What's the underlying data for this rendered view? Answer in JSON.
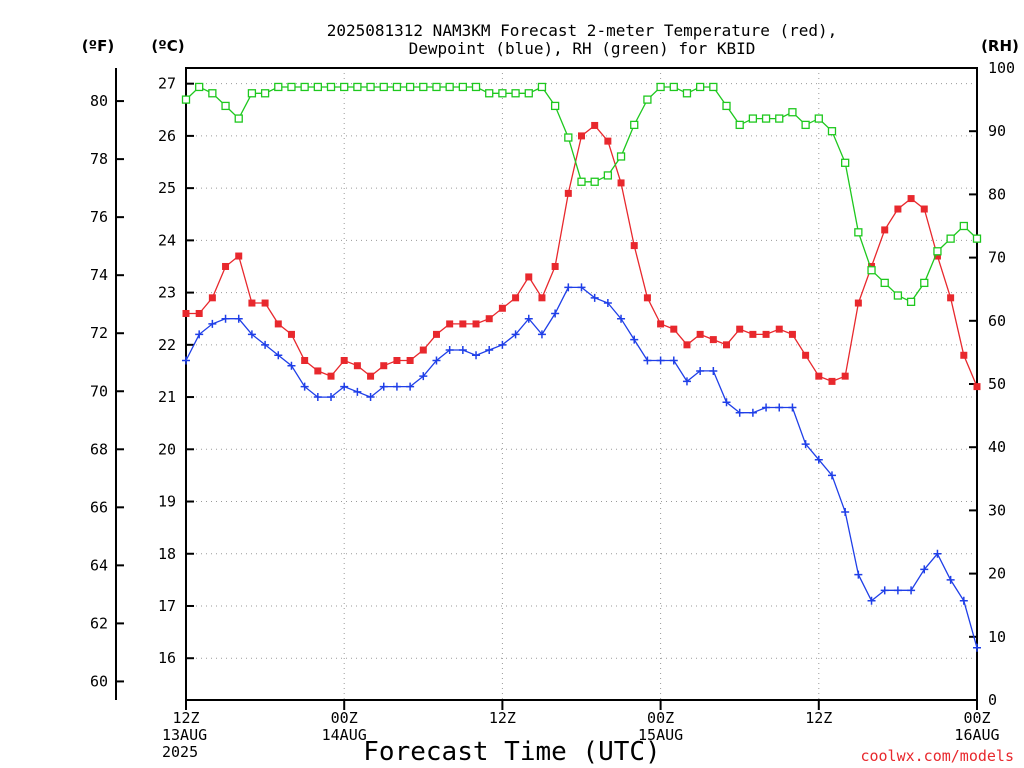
{
  "chart_data": {
    "type": "line",
    "title_line1": "2025081312 NAM3KM Forecast 2-meter Temperature (red),",
    "title_line2": "Dewpoint (blue), RH (green) for KBID",
    "xlabel": "Forecast Time (UTC)",
    "credit": "coolwx.com/models",
    "units": {
      "left_outer": "(ºF)",
      "left_inner": "(ºC)",
      "right": "(RH)"
    },
    "x_range_hours": [
      0,
      60
    ],
    "x_tick_hours": [
      0,
      12,
      24,
      36,
      48,
      60
    ],
    "x_ticks": [
      {
        "hour": 0,
        "lines": [
          "12Z",
          "13AUG",
          "2025"
        ]
      },
      {
        "hour": 12,
        "lines": [
          "00Z",
          "14AUG"
        ]
      },
      {
        "hour": 24,
        "lines": [
          "12Z"
        ]
      },
      {
        "hour": 36,
        "lines": [
          "00Z",
          "15AUG"
        ]
      },
      {
        "hour": 48,
        "lines": [
          "12Z"
        ]
      },
      {
        "hour": 60,
        "lines": [
          "00Z",
          "16AUG"
        ]
      }
    ],
    "axes": {
      "celsius": {
        "range": [
          15.2,
          27.3
        ],
        "ticks": [
          16,
          17,
          18,
          19,
          20,
          21,
          22,
          23,
          24,
          25,
          26,
          27
        ]
      },
      "fahrenheit": {
        "ticks": [
          60,
          62,
          64,
          66,
          68,
          70,
          72,
          74,
          76,
          78,
          80
        ]
      },
      "rh": {
        "range": [
          0,
          100
        ],
        "ticks": [
          0,
          10,
          20,
          30,
          40,
          50,
          60,
          70,
          80,
          90,
          100
        ]
      }
    },
    "grid": true,
    "colors": {
      "temperature": "#e8282d",
      "dewpoint": "#1f3fe8",
      "rh": "#1ec81e"
    },
    "series": [
      {
        "name": "Temperature",
        "axis": "celsius",
        "marker": "filled-square",
        "x": [
          0,
          1,
          2,
          3,
          4,
          5,
          6,
          7,
          8,
          9,
          10,
          11,
          12,
          13,
          14,
          15,
          16,
          17,
          18,
          19,
          20,
          21,
          22,
          23,
          24,
          25,
          26,
          27,
          28,
          29,
          30,
          31,
          32,
          33,
          34,
          35,
          36,
          37,
          38,
          39,
          40,
          41,
          42,
          43,
          44,
          45,
          46,
          47,
          48,
          49,
          50,
          51,
          52,
          53,
          54,
          55,
          56,
          57,
          58,
          59,
          60
        ],
        "values": [
          22.6,
          22.6,
          22.9,
          23.5,
          23.7,
          22.8,
          22.8,
          22.4,
          22.2,
          21.7,
          21.5,
          21.4,
          21.7,
          21.6,
          21.4,
          21.6,
          21.7,
          21.7,
          21.9,
          22.2,
          22.4,
          22.4,
          22.4,
          22.5,
          22.7,
          22.9,
          23.3,
          22.9,
          23.5,
          24.9,
          26.0,
          26.2,
          25.9,
          25.1,
          23.9,
          22.9,
          22.4,
          22.3,
          22.0,
          22.2,
          22.1,
          22.0,
          22.3,
          22.2,
          22.2,
          22.3,
          22.2,
          21.8,
          21.4,
          21.3,
          21.4,
          22.8,
          23.5,
          24.2,
          24.6,
          24.8,
          24.6,
          23.7,
          22.9,
          21.8,
          21.2
        ]
      },
      {
        "name": "Dewpoint",
        "axis": "celsius",
        "marker": "plus",
        "x": [
          0,
          1,
          2,
          3,
          4,
          5,
          6,
          7,
          8,
          9,
          10,
          11,
          12,
          13,
          14,
          15,
          16,
          17,
          18,
          19,
          20,
          21,
          22,
          23,
          24,
          25,
          26,
          27,
          28,
          29,
          30,
          31,
          32,
          33,
          34,
          35,
          36,
          37,
          38,
          39,
          40,
          41,
          42,
          43,
          44,
          45,
          46,
          47,
          48,
          49,
          50,
          51,
          52,
          53,
          54,
          55,
          56,
          57,
          58,
          59,
          60
        ],
        "values": [
          21.7,
          22.2,
          22.4,
          22.5,
          22.5,
          22.2,
          22.0,
          21.8,
          21.6,
          21.2,
          21.0,
          21.0,
          21.2,
          21.1,
          21.0,
          21.2,
          21.2,
          21.2,
          21.4,
          21.7,
          21.9,
          21.9,
          21.8,
          21.9,
          22.0,
          22.2,
          22.5,
          22.2,
          22.6,
          23.1,
          23.1,
          22.9,
          22.8,
          22.5,
          22.1,
          21.7,
          21.7,
          21.7,
          21.3,
          21.5,
          21.5,
          20.9,
          20.7,
          20.7,
          20.8,
          20.8,
          20.8,
          20.1,
          19.8,
          19.5,
          18.8,
          17.6,
          17.1,
          17.3,
          17.3,
          17.3,
          17.7,
          18.0,
          17.5,
          17.1,
          16.2
        ]
      },
      {
        "name": "RH",
        "axis": "rh",
        "marker": "open-square",
        "x": [
          0,
          1,
          2,
          3,
          4,
          5,
          6,
          7,
          8,
          9,
          10,
          11,
          12,
          13,
          14,
          15,
          16,
          17,
          18,
          19,
          20,
          21,
          22,
          23,
          24,
          25,
          26,
          27,
          28,
          29,
          30,
          31,
          32,
          33,
          34,
          35,
          36,
          37,
          38,
          39,
          40,
          41,
          42,
          43,
          44,
          45,
          46,
          47,
          48,
          49,
          50,
          51,
          52,
          53,
          54,
          55,
          56,
          57,
          58,
          59,
          60
        ],
        "values": [
          95,
          97,
          96,
          94,
          92,
          96,
          96,
          97,
          97,
          97,
          97,
          97,
          97,
          97,
          97,
          97,
          97,
          97,
          97,
          97,
          97,
          97,
          97,
          96,
          96,
          96,
          96,
          97,
          94,
          89,
          82,
          82,
          83,
          86,
          91,
          95,
          97,
          97,
          96,
          97,
          97,
          94,
          91,
          92,
          92,
          92,
          93,
          91,
          92,
          90,
          85,
          74,
          68,
          66,
          64,
          63,
          66,
          71,
          73,
          75,
          73
        ]
      }
    ]
  }
}
